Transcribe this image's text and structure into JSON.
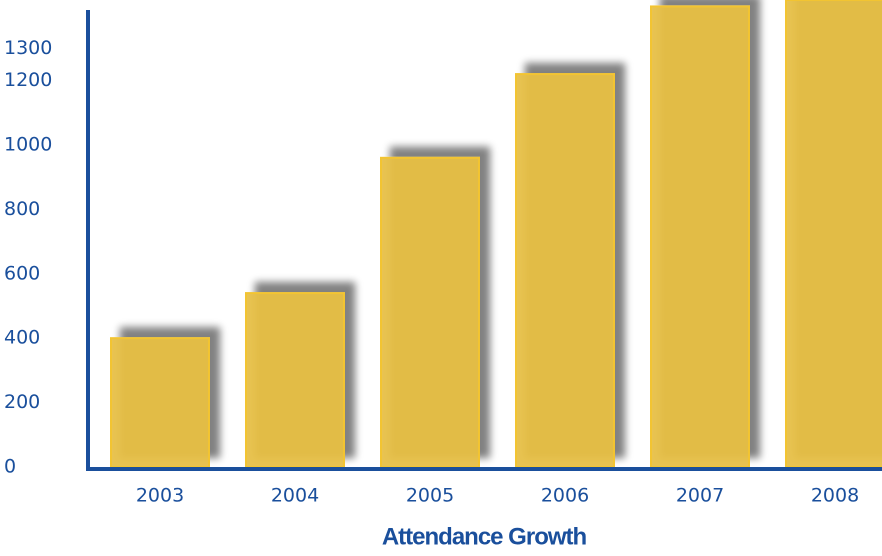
{
  "chart_data": {
    "type": "bar",
    "title": "Attendance Growth",
    "categories": [
      "2003",
      "2004",
      "2005",
      "2006",
      "2007",
      "2008"
    ],
    "values": [
      400,
      540,
      960,
      1220,
      1430,
      1450
    ],
    "color": "#e6bd3f",
    "ylim": [
      0,
      1450
    ],
    "yticks": [
      0,
      200,
      400,
      600,
      800,
      1000,
      1200,
      1300
    ]
  }
}
